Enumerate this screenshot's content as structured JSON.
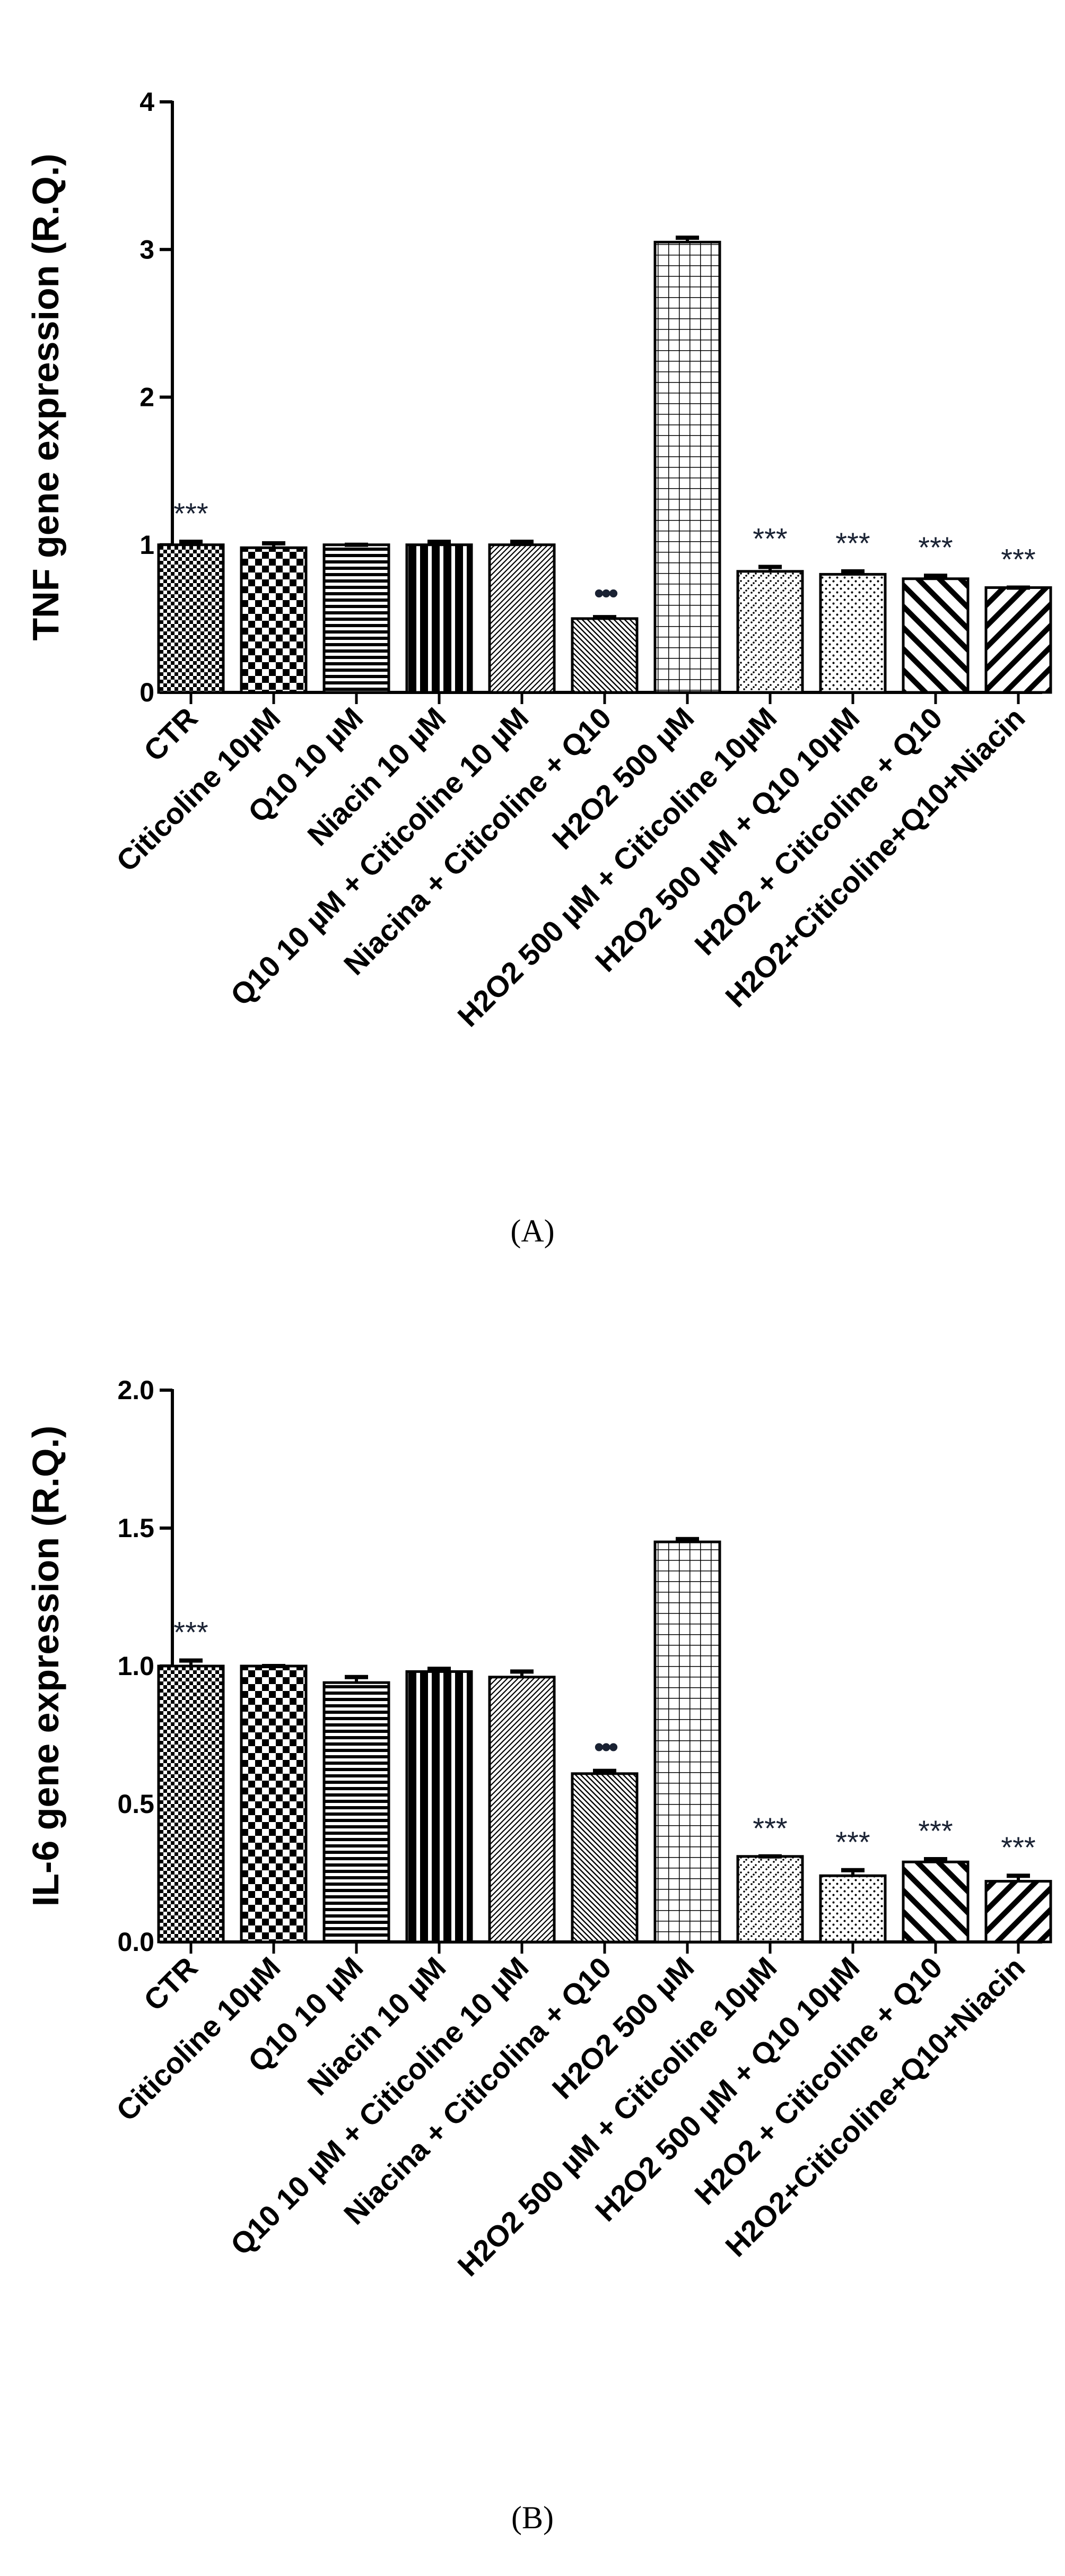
{
  "chart_data": [
    {
      "type": "bar",
      "panel": "A",
      "caption": "(A)",
      "ylabel": "TNF gene expression (R.Q.)",
      "ylim": [
        0,
        4
      ],
      "yticks": [
        "0",
        "1",
        "2",
        "3",
        "4"
      ],
      "grid": false,
      "categories": [
        "CTR",
        "Citicoline 10µM",
        "Q10 10 µM",
        "Niacin 10 µM",
        "Q10 10 µM + Citicoline 10 µM",
        "Niacina + Citicoline + Q10",
        "H2O2 500 µM",
        "H2O2 500 µM + Citicoline 10µM",
        "H2O2 500 µM + Q10 10µM",
        "H2O2 + Citicoline + Q10",
        "H2O2+Citicoline+Q10+Niacin"
      ],
      "values": [
        1.0,
        0.98,
        1.0,
        1.0,
        1.0,
        0.5,
        3.05,
        0.82,
        0.8,
        0.77,
        0.71
      ],
      "errors": [
        0.02,
        0.03,
        0.0,
        0.02,
        0.02,
        0.01,
        0.03,
        0.03,
        0.02,
        0.02,
        0.0
      ],
      "patterns": [
        "checker-small",
        "checker-large",
        "hlines",
        "vlines-thick",
        "diag-fine",
        "diag-back-dense",
        "grid",
        "diag-dots",
        "dots",
        "diag-back-wide",
        "diag-wide"
      ],
      "significance": [
        "***",
        "",
        "",
        "",
        "",
        "•••",
        "",
        "***",
        "***",
        "***",
        "***"
      ]
    },
    {
      "type": "bar",
      "panel": "B",
      "caption": "(B)",
      "ylabel": "IL-6 gene expression (R.Q.)",
      "ylim": [
        0,
        2.0
      ],
      "yticks": [
        "0.0",
        "0.5",
        "1.0",
        "1.5",
        "2.0"
      ],
      "grid": false,
      "categories": [
        "CTR",
        "Citicoline 10µM",
        "Q10 10 µM",
        "Niacin 10 µM",
        "Q10 10 µM + Citicoline 10 µM",
        "Niacina + Citicolina + Q10",
        "H2O2 500 µM",
        "H2O2 500 µM + Citicoline 10µM",
        "H2O2 500 µM + Q10 10µM",
        "H2O2 + Citicoline + Q10",
        "H2O2+Citicoline+Q10+Niacin"
      ],
      "values": [
        1.0,
        1.0,
        0.94,
        0.98,
        0.96,
        0.61,
        1.45,
        0.31,
        0.24,
        0.29,
        0.22
      ],
      "errors": [
        0.02,
        0.0,
        0.02,
        0.01,
        0.02,
        0.01,
        0.01,
        0.0,
        0.02,
        0.01,
        0.02
      ],
      "patterns": [
        "checker-small",
        "checker-large",
        "hlines",
        "vlines-thick",
        "diag-fine",
        "diag-back-dense",
        "grid",
        "diag-dots",
        "dots",
        "diag-back-wide",
        "diag-wide"
      ],
      "significance": [
        "***",
        "",
        "",
        "",
        "",
        "•••",
        "",
        "***",
        "***",
        "***",
        "***"
      ]
    }
  ]
}
